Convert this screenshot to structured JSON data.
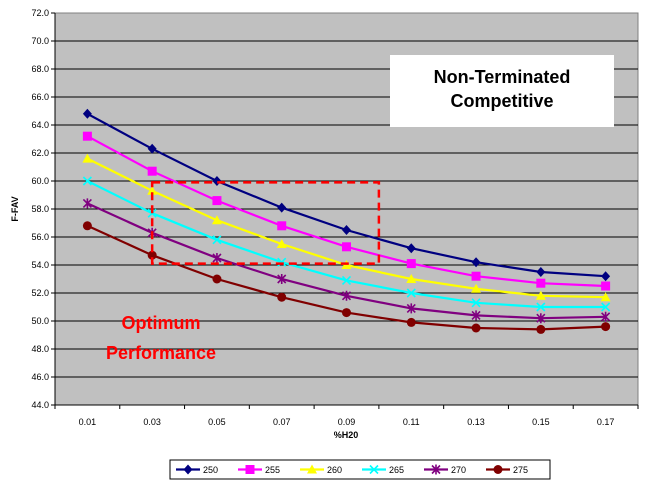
{
  "chart_data": {
    "type": "line",
    "xlabel": "%H20",
    "ylabel": "F-FAV",
    "ylim": [
      44.0,
      72.0
    ],
    "ytick_step": 2,
    "grid": "horizontal",
    "background_color": "#C0C0C0",
    "legend_position": "bottom",
    "x": [
      "0.01",
      "0.03",
      "0.05",
      "0.07",
      "0.09",
      "0.11",
      "0.13",
      "0.15",
      "0.17"
    ],
    "y_ticks": [
      "44.0",
      "46.0",
      "48.0",
      "50.0",
      "52.0",
      "54.0",
      "56.0",
      "58.0",
      "60.0",
      "62.0",
      "64.0",
      "66.0",
      "68.0",
      "70.0",
      "72.0"
    ],
    "series": [
      {
        "name": "250",
        "color": "#000080",
        "marker": "diamond",
        "values": [
          64.8,
          62.3,
          60.0,
          58.1,
          56.5,
          55.2,
          54.2,
          53.5,
          53.2
        ]
      },
      {
        "name": "255",
        "color": "#FF00FF",
        "marker": "square",
        "values": [
          63.2,
          60.7,
          58.6,
          56.8,
          55.3,
          54.1,
          53.2,
          52.7,
          52.5
        ]
      },
      {
        "name": "260",
        "color": "#FFFF00",
        "marker": "triangle",
        "values": [
          61.6,
          59.3,
          57.2,
          55.5,
          54.0,
          53.0,
          52.3,
          51.8,
          51.7
        ]
      },
      {
        "name": "265",
        "color": "#00FFFF",
        "marker": "x",
        "values": [
          60.0,
          57.7,
          55.8,
          54.2,
          52.9,
          52.0,
          51.3,
          51.0,
          51.0
        ]
      },
      {
        "name": "270",
        "color": "#800080",
        "marker": "star",
        "values": [
          58.4,
          56.3,
          54.5,
          53.0,
          51.8,
          50.9,
          50.4,
          50.2,
          50.3
        ]
      },
      {
        "name": "275",
        "color": "#800000",
        "marker": "circle",
        "values": [
          56.8,
          54.7,
          53.0,
          51.7,
          50.6,
          49.9,
          49.5,
          49.4,
          49.6
        ]
      }
    ],
    "annotations": {
      "title_box": [
        "Non-Terminated",
        "Competitive"
      ],
      "optimum_label": [
        "Optimum",
        "Performance"
      ],
      "optimum_color": "#FF0000",
      "optimum_region": {
        "x_from": "0.03",
        "x_to": "0.10",
        "y_from": 54.1,
        "y_to": 59.9
      }
    }
  }
}
